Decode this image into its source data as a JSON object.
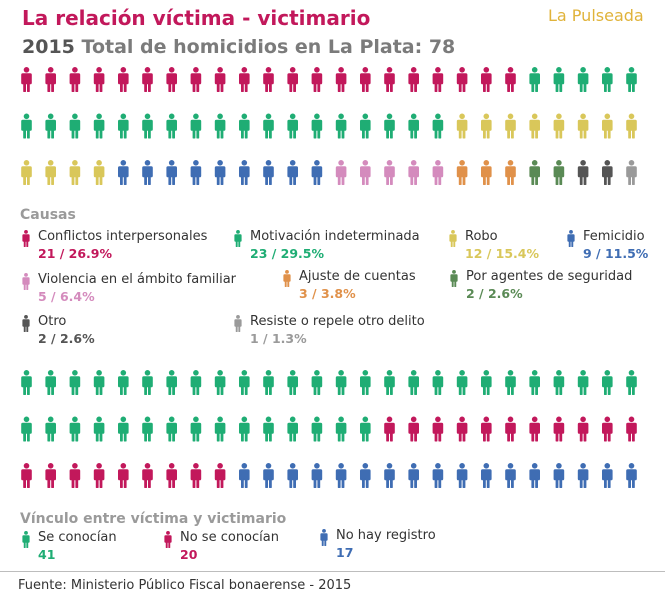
{
  "header": {
    "title": "La relación víctima - victimario",
    "brand": "La Pulseada",
    "subtitle_year": "2015",
    "subtitle_text": "Total de homicidios en La Plata: 78"
  },
  "colors": {
    "conflictos": "#c2185b",
    "motivacion": "#1fad74",
    "robo": "#d9c75a",
    "femicidio": "#3f6db3",
    "violencia": "#d48bbd",
    "ajuste": "#e0914a",
    "agentes": "#5a8a55",
    "otro": "#555555",
    "resiste": "#9a9a9a"
  },
  "causas_label": "Causas",
  "vinculo_label": "Vínculo entre víctima y victimario",
  "source": "Fuente: Ministerio Público Fiscal bonaerense - 2015",
  "chart_data": [
    {
      "type": "pictogram",
      "title": "Causas",
      "total": 78,
      "categories": [
        {
          "key": "conflictos",
          "label": "Conflictos interpersonales",
          "value": 21,
          "value_label": "21 / 26.9%",
          "color": "#c2185b"
        },
        {
          "key": "motivacion",
          "label": "Motivación indeterminada",
          "value": 23,
          "value_label": "23 / 29.5%",
          "color": "#1fad74"
        },
        {
          "key": "robo",
          "label": "Robo",
          "value": 12,
          "value_label": "12 / 15.4%",
          "color": "#d9c75a"
        },
        {
          "key": "femicidio",
          "label": "Femicidio",
          "value": 9,
          "value_label": "9 / 11.5%",
          "color": "#3f6db3"
        },
        {
          "key": "violencia",
          "label": "Violencia en el ámbito familiar",
          "value": 5,
          "value_label": "5 / 6.4%",
          "color": "#d48bbd"
        },
        {
          "key": "ajuste",
          "label": "Ajuste de cuentas",
          "value": 3,
          "value_label": "3 / 3.8%",
          "color": "#e0914a"
        },
        {
          "key": "agentes",
          "label": "Por agentes de seguridad",
          "value": 2,
          "value_label": "2 / 2.6%",
          "color": "#5a8a55"
        },
        {
          "key": "otro",
          "label": "Otro",
          "value": 2,
          "value_label": "2 / 2.6%",
          "color": "#555555"
        },
        {
          "key": "resiste",
          "label": "Resiste o repele otro delito",
          "value": 1,
          "value_label": "1 / 1.3%",
          "color": "#9a9a9a"
        }
      ]
    },
    {
      "type": "pictogram",
      "title": "Vínculo entre víctima y victimario",
      "total": 78,
      "categories": [
        {
          "key": "se_conocian",
          "label": "Se conocían",
          "value": 41,
          "value_label": "41",
          "color": "#1fad74"
        },
        {
          "key": "no_se_conocian",
          "label": "No se conocían",
          "value": 20,
          "value_label": "20",
          "color": "#c2185b"
        },
        {
          "key": "no_registro",
          "label": "No hay registro",
          "value": 17,
          "value_label": "17",
          "color": "#3f6db3"
        }
      ]
    }
  ]
}
